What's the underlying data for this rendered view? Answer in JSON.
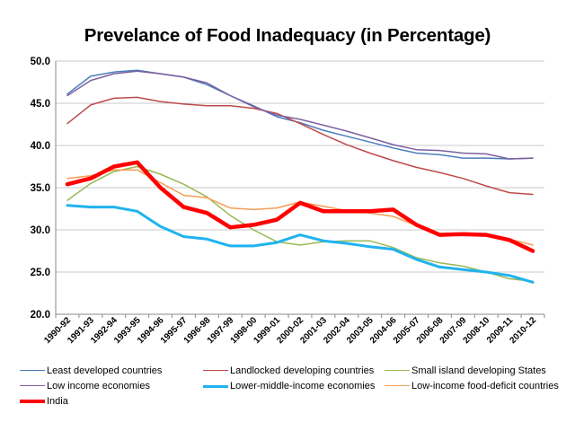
{
  "chart_data": {
    "type": "line",
    "title": "Prevelance of Food  Inadequacy (in Percentage)",
    "xlabel": "",
    "ylabel": "",
    "ylim": [
      20.0,
      50.0
    ],
    "yticks": [
      "20.0",
      "25.0",
      "30.0",
      "35.0",
      "40.0",
      "45.0",
      "50.0"
    ],
    "grid": "horizontal",
    "legend_position": "bottom",
    "categories": [
      "1990-92",
      "1991-93",
      "1992-94",
      "1993-95",
      "1994-96",
      "1995-97",
      "1996-98",
      "1997-99",
      "1998-00",
      "1999-01",
      "2000-02",
      "2001-03",
      "2002-04",
      "2003-05",
      "2004-06",
      "2005-07",
      "2006-08",
      "2007-09",
      "2008-10",
      "2009-11",
      "2010-12"
    ],
    "series": [
      {
        "name": "Least developed countries",
        "color": "#4a7ebb",
        "width": 1.5,
        "values": [
          46.1,
          48.2,
          48.7,
          48.9,
          48.5,
          48.1,
          47.2,
          45.9,
          44.7,
          43.4,
          42.7,
          41.8,
          41.1,
          40.4,
          39.7,
          39.1,
          38.9,
          38.5,
          38.5,
          38.4,
          38.5
        ]
      },
      {
        "name": "Landlocked developing countries",
        "color": "#be4b48",
        "width": 1.5,
        "values": [
          42.6,
          44.8,
          45.6,
          45.7,
          45.2,
          44.9,
          44.7,
          44.7,
          44.4,
          43.8,
          42.6,
          41.3,
          40.1,
          39.1,
          38.2,
          37.4,
          36.8,
          36.1,
          35.2,
          34.4,
          34.2
        ]
      },
      {
        "name": "Small island developing States",
        "color": "#98b954",
        "width": 1.5,
        "values": [
          33.5,
          35.5,
          36.9,
          37.5,
          36.6,
          35.4,
          33.9,
          31.7,
          30.0,
          28.6,
          28.2,
          28.6,
          28.7,
          28.7,
          27.9,
          26.7,
          26.1,
          25.7,
          25.0,
          24.2,
          23.9
        ]
      },
      {
        "name": "Low income economies",
        "color": "#7d60a0",
        "width": 1.5,
        "values": [
          45.9,
          47.7,
          48.5,
          48.8,
          48.5,
          48.1,
          47.4,
          45.9,
          44.6,
          43.6,
          43.1,
          42.4,
          41.7,
          40.9,
          40.1,
          39.5,
          39.4,
          39.1,
          39.0,
          38.4,
          38.5
        ]
      },
      {
        "name": "Lower-middle-income economies",
        "color": "#1fb3f0",
        "width": 3,
        "values": [
          32.9,
          32.7,
          32.7,
          32.2,
          30.4,
          29.2,
          28.9,
          28.1,
          28.1,
          28.5,
          29.4,
          28.7,
          28.4,
          28.0,
          27.7,
          26.5,
          25.6,
          25.3,
          25.0,
          24.6,
          23.8
        ]
      },
      {
        "name": "Low-income food-deficit countries",
        "color": "#f59d56",
        "width": 1.5,
        "values": [
          36.1,
          36.4,
          37.1,
          37.1,
          35.6,
          34.1,
          33.8,
          32.6,
          32.4,
          32.6,
          33.3,
          32.8,
          32.3,
          32.0,
          31.6,
          30.5,
          29.6,
          29.5,
          29.4,
          28.9,
          28.2
        ]
      },
      {
        "name": "India",
        "color": "#ff0000",
        "width": 4.5,
        "values": [
          35.4,
          36.1,
          37.5,
          38.0,
          35.0,
          32.7,
          32.0,
          30.3,
          30.6,
          31.2,
          33.2,
          32.2,
          32.2,
          32.2,
          32.4,
          30.6,
          29.4,
          29.5,
          29.4,
          28.8,
          27.5
        ]
      }
    ]
  }
}
